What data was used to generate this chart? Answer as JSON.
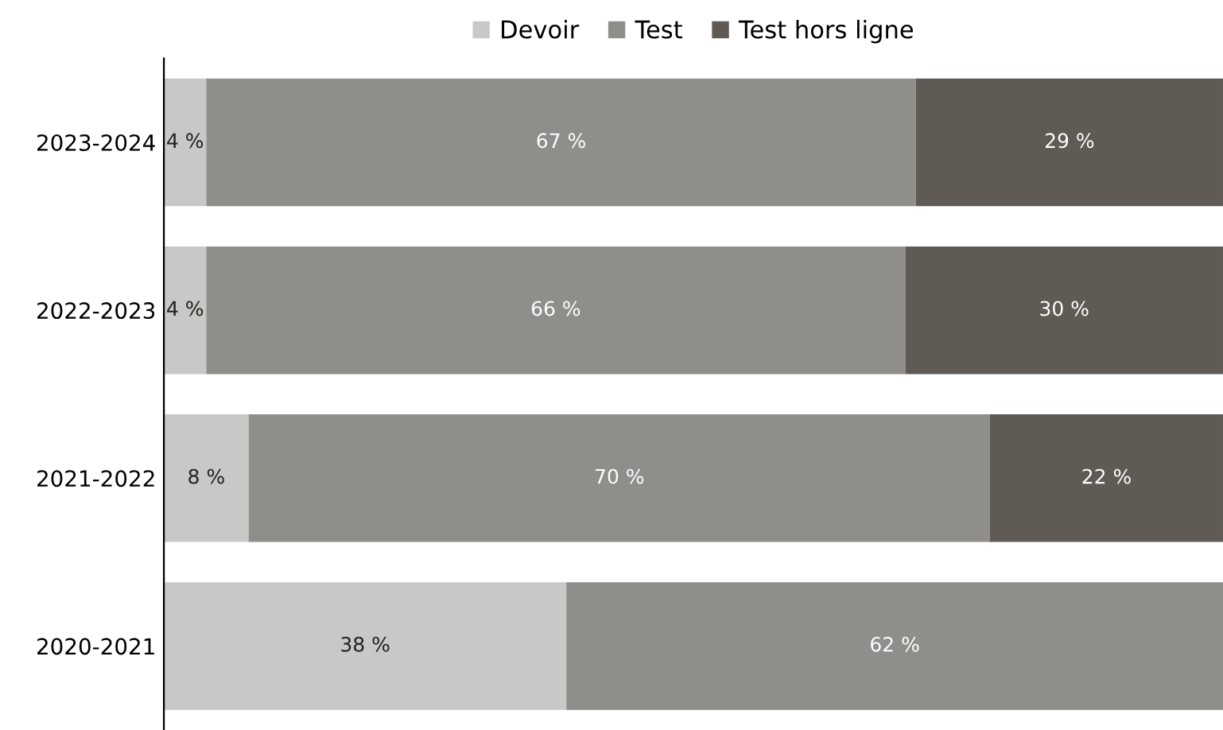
{
  "chart_data": {
    "type": "bar",
    "orientation": "horizontal",
    "stacked": true,
    "legend": "top",
    "categories": [
      "2023-2024",
      "2022-2023",
      "2021-2022",
      "2020-2021"
    ],
    "series": [
      {
        "name": "Devoir",
        "color": "#c8c8c6",
        "values": [
          4,
          4,
          8,
          38
        ],
        "value_labels": [
          "4 %",
          "4 %",
          "8 %",
          "38 %"
        ]
      },
      {
        "name": "Test",
        "color": "#8f8e8b",
        "values": [
          67,
          66,
          70,
          62
        ],
        "value_labels": [
          "67 %",
          "66 %",
          "70 %",
          "62 %"
        ]
      },
      {
        "name": "Test hors ligne",
        "color": "#605a55",
        "values": [
          29,
          30,
          22,
          null
        ],
        "value_labels": [
          "29 %",
          "30 %",
          "22 %",
          null
        ]
      }
    ]
  }
}
